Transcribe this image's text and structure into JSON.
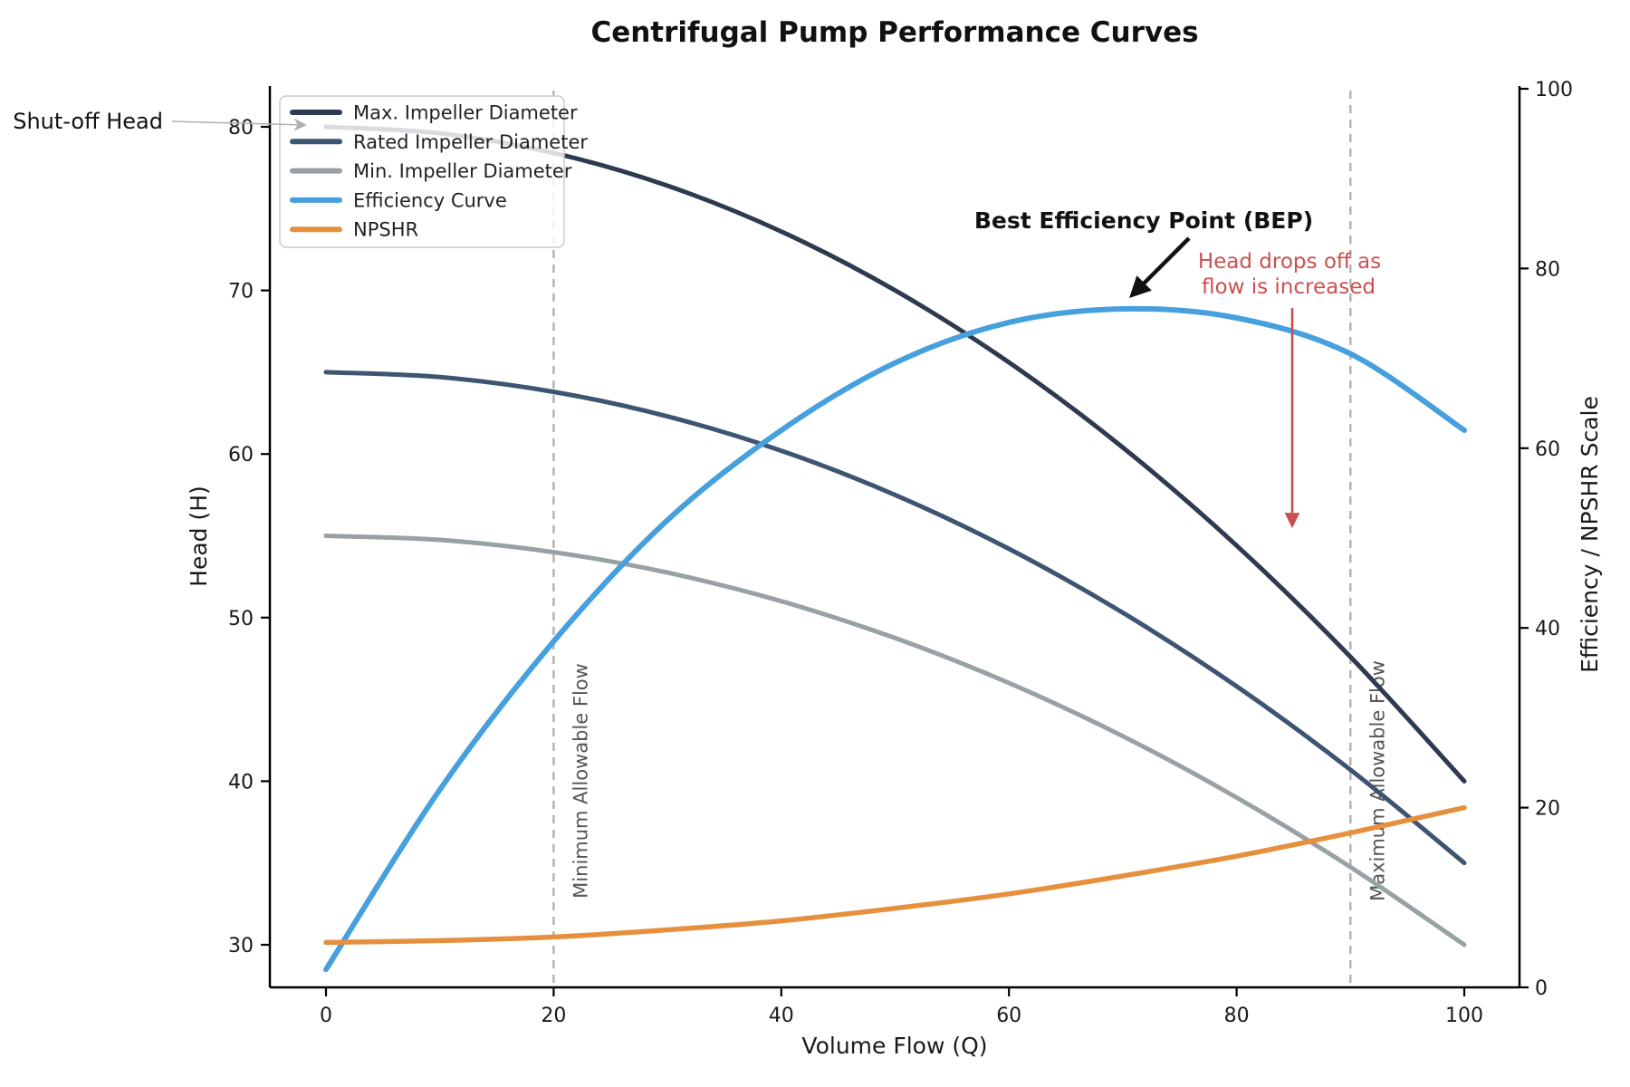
{
  "title": "Centrifugal Pump Performance Curves",
  "xlabel": "Volume Flow (Q)",
  "ylabel_left": "Head (H)",
  "ylabel_right": "Efficiency / NPSHR Scale",
  "annotations": {
    "shutoff": {
      "text": "Shut-off Head",
      "points_to": {
        "q": 0,
        "head": 80
      }
    },
    "bep": {
      "text": "Best Efficiency Point (BEP)",
      "points_to": {
        "q": 70,
        "efficiency": 75.5
      }
    },
    "head_drop": {
      "line1": "Head drops off as",
      "line2": "flow is increased",
      "color": "#c9504f",
      "arrow_points_to": {
        "q": 85,
        "head": 50
      }
    }
  },
  "chart_data": {
    "type": "line",
    "x": [
      0,
      10,
      20,
      30,
      40,
      50,
      60,
      70,
      80,
      90,
      100
    ],
    "x_range": [
      0,
      100
    ],
    "x_ticks": [
      0,
      20,
      40,
      60,
      80,
      100
    ],
    "y_left_ticks": [
      30,
      40,
      50,
      60,
      70,
      80
    ],
    "y_right_ticks": [
      0,
      20,
      40,
      60,
      80,
      100
    ],
    "y_right_range": [
      0,
      100
    ],
    "grid": "off",
    "legend_position": "upper-left",
    "series": [
      {
        "name": "Max. Impeller Diameter",
        "axis": "left",
        "color": "#2e3a50",
        "width": 5,
        "values": [
          80,
          79.6,
          78.4,
          76.4,
          73.6,
          70,
          65.6,
          60.4,
          54.4,
          47.6,
          40
        ]
      },
      {
        "name": "Rated Impeller Diameter",
        "axis": "left",
        "color": "#3d5472",
        "width": 5,
        "values": [
          65,
          64.7,
          63.8,
          62.3,
          60.2,
          57.5,
          54.2,
          50.3,
          45.8,
          40.7,
          35
        ]
      },
      {
        "name": "Min. Impeller Diameter",
        "axis": "left",
        "color": "#98a2a5",
        "width": 5,
        "values": [
          55,
          54.75,
          54,
          52.75,
          51,
          48.75,
          46,
          42.75,
          39,
          34.75,
          30
        ]
      },
      {
        "name": "Efficiency Curve",
        "axis": "right",
        "color": "#45a0dd",
        "width": 6,
        "values": [
          2,
          22,
          38.5,
          52,
          62,
          69.5,
          74,
          75.5,
          74.5,
          70.5,
          62
        ]
      },
      {
        "name": "NPSHR",
        "axis": "right",
        "color": "#e68f3d",
        "width": 5.5,
        "values": [
          5,
          5.2,
          5.6,
          6.4,
          7.4,
          8.8,
          10.4,
          12.4,
          14.6,
          17.2,
          20
        ]
      }
    ],
    "vlines": [
      {
        "x": 20,
        "label": "Minimum Allowable Flow"
      },
      {
        "x": 90,
        "label": "Maximum Allowable Flow"
      }
    ]
  }
}
